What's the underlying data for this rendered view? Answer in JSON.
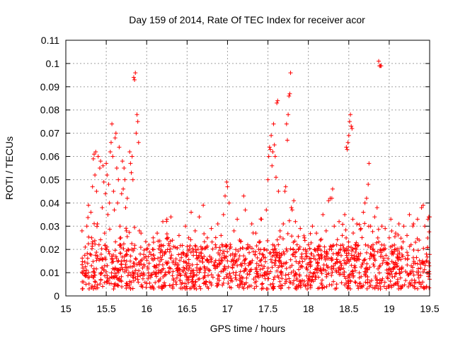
{
  "chart_data": {
    "type": "scatter",
    "title": "Day 159 of 2014, Rate Of TEC Index for receiver acor",
    "xlabel": "GPS time / hours",
    "ylabel": "ROTI / TECUs",
    "xlim": [
      15,
      19.5
    ],
    "ylim": [
      0,
      0.11
    ],
    "xticks": [
      15,
      15.5,
      16,
      16.5,
      17,
      17.5,
      18,
      18.5,
      19,
      19.5
    ],
    "xtick_labels": [
      "15",
      "15.5",
      "16",
      "16.5",
      "17",
      "17.5",
      "18",
      "18.5",
      "19",
      "19.5"
    ],
    "yticks": [
      0,
      0.01,
      0.02,
      0.03,
      0.04,
      0.05,
      0.06,
      0.07,
      0.08,
      0.09,
      0.1,
      0.11
    ],
    "ytick_labels": [
      "0",
      "0.01",
      "0.02",
      "0.03",
      "0.04",
      "0.05",
      "0.06",
      "0.07",
      "0.08",
      "0.09",
      "0.1",
      "0.11"
    ],
    "grid": true,
    "marker": "+",
    "color": "#ff0000",
    "points": [
      [
        15.2,
        0.028
      ],
      [
        15.21,
        0.012
      ],
      [
        15.22,
        0.006
      ],
      [
        15.23,
        0.009
      ],
      [
        15.24,
        0.021
      ],
      [
        15.25,
        0.005
      ],
      [
        15.26,
        0.03
      ],
      [
        15.27,
        0.014
      ],
      [
        15.28,
        0.039
      ],
      [
        15.29,
        0.008
      ],
      [
        15.3,
        0.018
      ],
      [
        15.31,
        0.036
      ],
      [
        15.32,
        0.025
      ],
      [
        15.33,
        0.047
      ],
      [
        15.34,
        0.059
      ],
      [
        15.35,
        0.061
      ],
      [
        15.36,
        0.052
      ],
      [
        15.37,
        0.062
      ],
      [
        15.38,
        0.045
      ],
      [
        15.39,
        0.031
      ],
      [
        15.4,
        0.06
      ],
      [
        15.41,
        0.022
      ],
      [
        15.42,
        0.055
      ],
      [
        15.43,
        0.058
      ],
      [
        15.44,
        0.01
      ],
      [
        15.45,
        0.038
      ],
      [
        15.46,
        0.056
      ],
      [
        15.47,
        0.049
      ],
      [
        15.48,
        0.027
      ],
      [
        15.49,
        0.044
      ],
      [
        15.5,
        0.057
      ],
      [
        15.51,
        0.052
      ],
      [
        15.52,
        0.035
      ],
      [
        15.53,
        0.048
      ],
      [
        15.54,
        0.04
      ],
      [
        15.55,
        0.062
      ],
      [
        15.56,
        0.066
      ],
      [
        15.57,
        0.074
      ],
      [
        15.58,
        0.06
      ],
      [
        15.59,
        0.045
      ],
      [
        15.6,
        0.037
      ],
      [
        15.61,
        0.068
      ],
      [
        15.62,
        0.07
      ],
      [
        15.63,
        0.055
      ],
      [
        15.64,
        0.04
      ],
      [
        15.65,
        0.05
      ],
      [
        15.66,
        0.064
      ],
      [
        15.67,
        0.03
      ],
      [
        15.68,
        0.025
      ],
      [
        15.69,
        0.044
      ],
      [
        15.7,
        0.058
      ],
      [
        15.71,
        0.046
      ],
      [
        15.72,
        0.055
      ],
      [
        15.73,
        0.05
      ],
      [
        15.74,
        0.038
      ],
      [
        15.75,
        0.028
      ],
      [
        15.76,
        0.042
      ],
      [
        15.77,
        0.02
      ],
      [
        15.78,
        0.01
      ],
      [
        15.79,
        0.062
      ],
      [
        15.8,
        0.057
      ],
      [
        15.81,
        0.053
      ],
      [
        15.82,
        0.06
      ],
      [
        15.83,
        0.05
      ],
      [
        15.84,
        0.094
      ],
      [
        15.85,
        0.093
      ],
      [
        15.86,
        0.096
      ],
      [
        15.87,
        0.07
      ],
      [
        15.88,
        0.078
      ],
      [
        15.89,
        0.075
      ],
      [
        15.9,
        0.066
      ],
      [
        15.91,
        0.028
      ],
      [
        15.92,
        0.018
      ],
      [
        15.93,
        0.027
      ],
      [
        15.95,
        0.012
      ],
      [
        15.97,
        0.009
      ],
      [
        16.0,
        0.02
      ],
      [
        16.03,
        0.014
      ],
      [
        16.05,
        0.008
      ],
      [
        16.08,
        0.025
      ],
      [
        16.1,
        0.016
      ],
      [
        16.13,
        0.027
      ],
      [
        16.15,
        0.011
      ],
      [
        16.18,
        0.022
      ],
      [
        16.2,
        0.032
      ],
      [
        16.22,
        0.018
      ],
      [
        16.25,
        0.033
      ],
      [
        16.28,
        0.01
      ],
      [
        16.3,
        0.034
      ],
      [
        16.33,
        0.015
      ],
      [
        16.35,
        0.021
      ],
      [
        16.38,
        0.012
      ],
      [
        16.4,
        0.026
      ],
      [
        16.42,
        0.009
      ],
      [
        16.45,
        0.018
      ],
      [
        16.48,
        0.03
      ],
      [
        16.5,
        0.013
      ],
      [
        16.52,
        0.025
      ],
      [
        16.55,
        0.036
      ],
      [
        16.58,
        0.011
      ],
      [
        16.6,
        0.028
      ],
      [
        16.62,
        0.016
      ],
      [
        16.65,
        0.034
      ],
      [
        16.68,
        0.02
      ],
      [
        16.7,
        0.039
      ],
      [
        16.72,
        0.012
      ],
      [
        16.75,
        0.025
      ],
      [
        16.78,
        0.017
      ],
      [
        16.8,
        0.029
      ],
      [
        16.82,
        0.008
      ],
      [
        16.85,
        0.022
      ],
      [
        16.88,
        0.031
      ],
      [
        16.9,
        0.014
      ],
      [
        16.92,
        0.026
      ],
      [
        16.95,
        0.035
      ],
      [
        16.97,
        0.043
      ],
      [
        16.99,
        0.049
      ],
      [
        17.0,
        0.047
      ],
      [
        17.02,
        0.04
      ],
      [
        17.04,
        0.021
      ],
      [
        17.06,
        0.012
      ],
      [
        17.08,
        0.028
      ],
      [
        17.1,
        0.018
      ],
      [
        17.12,
        0.033
      ],
      [
        17.15,
        0.024
      ],
      [
        17.18,
        0.014
      ],
      [
        17.2,
        0.043
      ],
      [
        17.22,
        0.037
      ],
      [
        17.25,
        0.022
      ],
      [
        17.28,
        0.011
      ],
      [
        17.3,
        0.031
      ],
      [
        17.32,
        0.019
      ],
      [
        17.35,
        0.027
      ],
      [
        17.38,
        0.009
      ],
      [
        17.4,
        0.015
      ],
      [
        17.42,
        0.033
      ],
      [
        17.45,
        0.02
      ],
      [
        17.48,
        0.037
      ],
      [
        17.5,
        0.05
      ],
      [
        17.51,
        0.06
      ],
      [
        17.52,
        0.064
      ],
      [
        17.53,
        0.063
      ],
      [
        17.54,
        0.069
      ],
      [
        17.55,
        0.056
      ],
      [
        17.56,
        0.062
      ],
      [
        17.57,
        0.074
      ],
      [
        17.58,
        0.065
      ],
      [
        17.59,
        0.06
      ],
      [
        17.6,
        0.051
      ],
      [
        17.61,
        0.083
      ],
      [
        17.62,
        0.084
      ],
      [
        17.63,
        0.045
      ],
      [
        17.65,
        0.028
      ],
      [
        17.67,
        0.018
      ],
      [
        17.69,
        0.031
      ],
      [
        17.71,
        0.045
      ],
      [
        17.72,
        0.047
      ],
      [
        17.73,
        0.074
      ],
      [
        17.74,
        0.067
      ],
      [
        17.75,
        0.078
      ],
      [
        17.76,
        0.086
      ],
      [
        17.77,
        0.087
      ],
      [
        17.78,
        0.096
      ],
      [
        17.79,
        0.038
      ],
      [
        17.8,
        0.037
      ],
      [
        17.82,
        0.041
      ],
      [
        17.84,
        0.032
      ],
      [
        17.86,
        0.022
      ],
      [
        17.88,
        0.014
      ],
      [
        17.9,
        0.029
      ],
      [
        17.92,
        0.018
      ],
      [
        17.95,
        0.025
      ],
      [
        17.98,
        0.012
      ],
      [
        18.0,
        0.022
      ],
      [
        18.03,
        0.016
      ],
      [
        18.05,
        0.03
      ],
      [
        18.08,
        0.02
      ],
      [
        18.1,
        0.027
      ],
      [
        18.12,
        0.013
      ],
      [
        18.15,
        0.024
      ],
      [
        18.18,
        0.035
      ],
      [
        18.2,
        0.019
      ],
      [
        18.22,
        0.028
      ],
      [
        18.25,
        0.041
      ],
      [
        18.27,
        0.042
      ],
      [
        18.29,
        0.042
      ],
      [
        18.3,
        0.046
      ],
      [
        18.32,
        0.03
      ],
      [
        18.35,
        0.022
      ],
      [
        18.38,
        0.032
      ],
      [
        18.4,
        0.014
      ],
      [
        18.42,
        0.026
      ],
      [
        18.45,
        0.035
      ],
      [
        18.47,
        0.064
      ],
      [
        18.48,
        0.063
      ],
      [
        18.49,
        0.066
      ],
      [
        18.5,
        0.069
      ],
      [
        18.51,
        0.075
      ],
      [
        18.52,
        0.078
      ],
      [
        18.53,
        0.073
      ],
      [
        18.54,
        0.072
      ],
      [
        18.55,
        0.033
      ],
      [
        18.58,
        0.022
      ],
      [
        18.6,
        0.031
      ],
      [
        18.62,
        0.018
      ],
      [
        18.65,
        0.029
      ],
      [
        18.68,
        0.036
      ],
      [
        18.7,
        0.04
      ],
      [
        18.72,
        0.042
      ],
      [
        18.74,
        0.048
      ],
      [
        18.75,
        0.057
      ],
      [
        18.77,
        0.03
      ],
      [
        18.8,
        0.022
      ],
      [
        18.82,
        0.034
      ],
      [
        18.85,
        0.038
      ],
      [
        18.87,
        0.101
      ],
      [
        18.88,
        0.099
      ],
      [
        18.89,
        0.099
      ],
      [
        18.9,
        0.099
      ],
      [
        18.91,
        0.03
      ],
      [
        18.93,
        0.02
      ],
      [
        18.95,
        0.029
      ],
      [
        18.98,
        0.014
      ],
      [
        19.0,
        0.025
      ],
      [
        19.02,
        0.033
      ],
      [
        19.05,
        0.018
      ],
      [
        19.08,
        0.027
      ],
      [
        19.1,
        0.013
      ],
      [
        19.12,
        0.031
      ],
      [
        19.15,
        0.021
      ],
      [
        19.18,
        0.03
      ],
      [
        19.2,
        0.016
      ],
      [
        19.22,
        0.026
      ],
      [
        19.25,
        0.035
      ],
      [
        19.27,
        0.022
      ],
      [
        19.3,
        0.031
      ],
      [
        19.32,
        0.014
      ],
      [
        19.35,
        0.033
      ],
      [
        19.37,
        0.024
      ],
      [
        19.4,
        0.038
      ],
      [
        19.42,
        0.039
      ],
      [
        19.44,
        0.03
      ],
      [
        19.46,
        0.018
      ],
      [
        19.48,
        0.033
      ],
      [
        19.49,
        0.034
      ],
      [
        19.5,
        0.034
      ]
    ],
    "dense_band": {
      "description_x_range": [
        15.2,
        19.5
      ],
      "y_min": 0.003,
      "y_max": 0.022,
      "count": 1400
    }
  }
}
